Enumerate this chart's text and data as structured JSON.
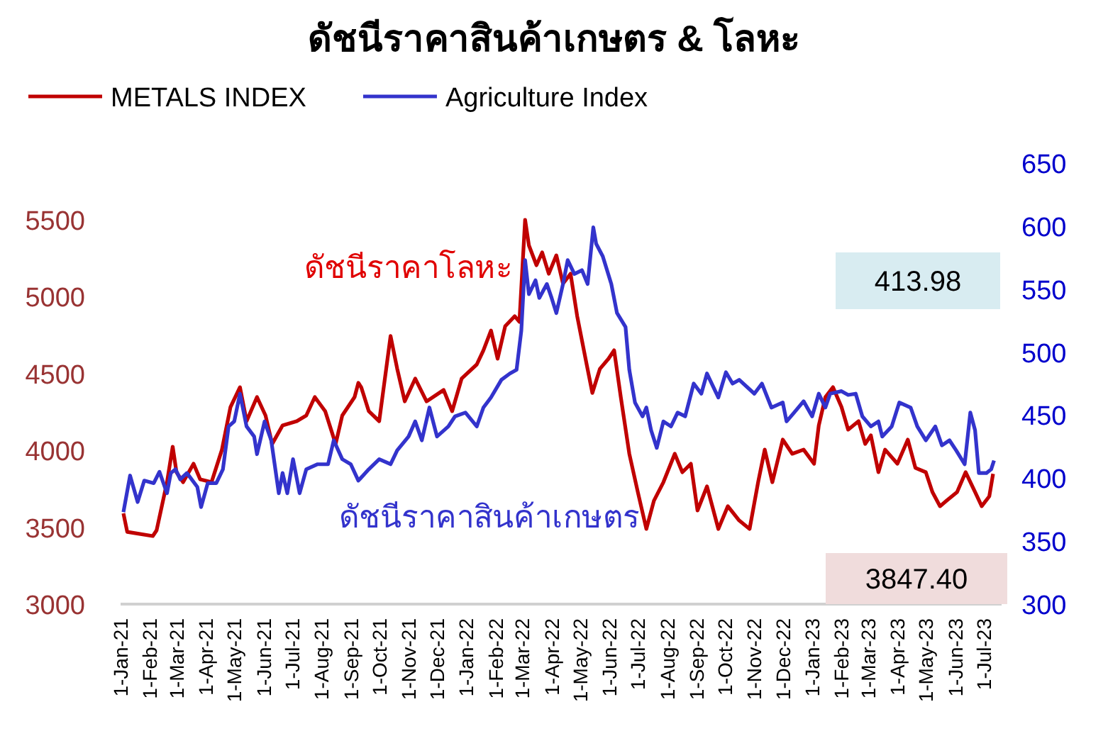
{
  "chart_data": {
    "type": "line",
    "title": "ดัชนีราคาสินค้าเกษตร & โลหะ",
    "legend": "top",
    "grid": false,
    "xlim": [
      "2021-01-01",
      "2023-07-20"
    ],
    "xticks": [
      {
        "value": "2021-01-01",
        "label": "1-Jan-21"
      },
      {
        "value": "2021-02-01",
        "label": "1-Feb-21"
      },
      {
        "value": "2021-03-01",
        "label": "1-Mar-21"
      },
      {
        "value": "2021-04-01",
        "label": "1-Apr-21"
      },
      {
        "value": "2021-05-01",
        "label": "1-May-21"
      },
      {
        "value": "2021-06-01",
        "label": "1-Jun-21"
      },
      {
        "value": "2021-07-01",
        "label": "1-Jul-21"
      },
      {
        "value": "2021-08-01",
        "label": "1-Aug-21"
      },
      {
        "value": "2021-09-01",
        "label": "1-Sep-21"
      },
      {
        "value": "2021-10-01",
        "label": "1-Oct-21"
      },
      {
        "value": "2021-11-01",
        "label": "1-Nov-21"
      },
      {
        "value": "2021-12-01",
        "label": "1-Dec-21"
      },
      {
        "value": "2022-01-01",
        "label": "1-Jan-22"
      },
      {
        "value": "2022-02-01",
        "label": "1-Feb-22"
      },
      {
        "value": "2022-03-01",
        "label": "1-Mar-22"
      },
      {
        "value": "2022-04-01",
        "label": "1-Apr-22"
      },
      {
        "value": "2022-05-01",
        "label": "1-May-22"
      },
      {
        "value": "2022-06-01",
        "label": "1-Jun-22"
      },
      {
        "value": "2022-07-01",
        "label": "1-Jul-22"
      },
      {
        "value": "2022-08-01",
        "label": "1-Aug-22"
      },
      {
        "value": "2022-09-01",
        "label": "1-Sep-22"
      },
      {
        "value": "2022-10-01",
        "label": "1-Oct-22"
      },
      {
        "value": "2022-11-01",
        "label": "1-Nov-22"
      },
      {
        "value": "2022-12-01",
        "label": "1-Dec-22"
      },
      {
        "value": "2023-01-01",
        "label": "1-Jan-23"
      },
      {
        "value": "2023-02-01",
        "label": "1-Feb-23"
      },
      {
        "value": "2023-03-01",
        "label": "1-Mar-23"
      },
      {
        "value": "2023-04-01",
        "label": "1-Apr-23"
      },
      {
        "value": "2023-05-01",
        "label": "1-May-23"
      },
      {
        "value": "2023-06-01",
        "label": "1-Jun-23"
      },
      {
        "value": "2023-07-01",
        "label": "1-Jul-23"
      }
    ],
    "ylim": [
      3000,
      5500
    ],
    "yticks": [
      3000,
      3500,
      4000,
      4500,
      5000,
      5500
    ],
    "y2lim": [
      300,
      650
    ],
    "y2ticks": [
      300,
      350,
      400,
      450,
      500,
      550,
      600,
      650
    ],
    "annotations": [
      "ดัชนีราคาโลหะ",
      "ดัชนีราคาสินค้าเกษตร",
      "413.98",
      "3847.40"
    ],
    "series": [
      {
        "name": "METALS INDEX",
        "color": "#c00000",
        "x": [
          "2021-01-04",
          "2021-01-08",
          "2021-02-04",
          "2021-02-08",
          "2021-02-19",
          "2021-02-25",
          "2021-03-01",
          "2021-03-08",
          "2021-03-19",
          "2021-03-26",
          "2021-04-07",
          "2021-04-18",
          "2021-04-27",
          "2021-05-07",
          "2021-05-14",
          "2021-05-25",
          "2021-06-03",
          "2021-06-10",
          "2021-06-21",
          "2021-07-06",
          "2021-07-16",
          "2021-07-25",
          "2021-08-05",
          "2021-08-16",
          "2021-08-23",
          "2021-09-05",
          "2021-09-09",
          "2021-09-12",
          "2021-09-20",
          "2021-10-01",
          "2021-10-13",
          "2021-10-20",
          "2021-10-28",
          "2021-11-08",
          "2021-11-20",
          "2021-12-08",
          "2021-12-17",
          "2021-12-27",
          "2022-01-12",
          "2022-01-19",
          "2022-01-27",
          "2022-02-03",
          "2022-02-11",
          "2022-02-21",
          "2022-02-26",
          "2022-03-04",
          "2022-03-08",
          "2022-03-16",
          "2022-03-22",
          "2022-03-29",
          "2022-04-06",
          "2022-04-13",
          "2022-04-21",
          "2022-04-28",
          "2022-05-08",
          "2022-05-14",
          "2022-05-22",
          "2022-05-31",
          "2022-06-06",
          "2022-06-13",
          "2022-06-22",
          "2022-07-01",
          "2022-07-10",
          "2022-07-18",
          "2022-07-28",
          "2022-08-09",
          "2022-08-17",
          "2022-08-26",
          "2022-09-02",
          "2022-09-12",
          "2022-09-24",
          "2022-10-04",
          "2022-10-16",
          "2022-10-27",
          "2022-11-05",
          "2022-11-12",
          "2022-11-20",
          "2022-12-01",
          "2022-12-11",
          "2022-12-23",
          "2023-01-03",
          "2023-01-08",
          "2023-01-15",
          "2023-01-23",
          "2023-02-01",
          "2023-02-08",
          "2023-02-19",
          "2023-02-26",
          "2023-03-04",
          "2023-03-12",
          "2023-03-19",
          "2023-04-01",
          "2023-04-12",
          "2023-04-20",
          "2023-05-01",
          "2023-05-08",
          "2023-05-16",
          "2023-05-23",
          "2023-06-03",
          "2023-06-12",
          "2023-06-22",
          "2023-06-29",
          "2023-07-07",
          "2023-07-11"
        ],
        "values": [
          3590,
          3470,
          3443,
          3480,
          3793,
          4024,
          3858,
          3793,
          3913,
          3812,
          3793,
          4005,
          4282,
          4411,
          4190,
          4347,
          4227,
          4042,
          4162,
          4190,
          4227,
          4347,
          4255,
          4042,
          4227,
          4347,
          4439,
          4411,
          4255,
          4190,
          4744,
          4531,
          4319,
          4467,
          4319,
          4393,
          4255,
          4467,
          4559,
          4651,
          4780,
          4596,
          4808,
          4873,
          4836,
          5500,
          5334,
          5205,
          5288,
          5149,
          5269,
          5085,
          5149,
          4873,
          4559,
          4374,
          4531,
          4596,
          4651,
          4347,
          3978,
          3729,
          3489,
          3673,
          3793,
          3978,
          3858,
          3913,
          3609,
          3766,
          3489,
          3637,
          3544,
          3489,
          3793,
          4005,
          3793,
          4070,
          3978,
          4005,
          3913,
          4162,
          4347,
          4411,
          4282,
          4135,
          4190,
          4042,
          4098,
          3858,
          4005,
          3913,
          4070,
          3886,
          3858,
          3729,
          3637,
          3673,
          3729,
          3858,
          3729,
          3637,
          3701,
          3847.4
        ]
      },
      {
        "name": "Agriculture Index",
        "color": "#3333cc",
        "axis": "y2",
        "x": [
          "2021-01-04",
          "2021-01-11",
          "2021-01-19",
          "2021-01-26",
          "2021-02-05",
          "2021-02-11",
          "2021-02-19",
          "2021-02-23",
          "2021-02-28",
          "2021-03-05",
          "2021-03-12",
          "2021-03-23",
          "2021-03-27",
          "2021-04-03",
          "2021-04-12",
          "2021-04-19",
          "2021-04-25",
          "2021-05-01",
          "2021-05-07",
          "2021-05-14",
          "2021-05-22",
          "2021-05-25",
          "2021-06-02",
          "2021-06-09",
          "2021-06-17",
          "2021-06-21",
          "2021-06-26",
          "2021-07-02",
          "2021-07-09",
          "2021-07-16",
          "2021-07-28",
          "2021-08-08",
          "2021-08-14",
          "2021-08-23",
          "2021-09-01",
          "2021-09-09",
          "2021-09-20",
          "2021-10-01",
          "2021-10-13",
          "2021-10-20",
          "2021-11-01",
          "2021-11-08",
          "2021-11-15",
          "2021-11-23",
          "2021-12-01",
          "2021-12-13",
          "2021-12-20",
          "2021-12-31",
          "2022-01-12",
          "2022-01-19",
          "2022-01-27",
          "2022-02-07",
          "2022-02-16",
          "2022-02-23",
          "2022-02-28",
          "2022-03-04",
          "2022-03-08",
          "2022-03-15",
          "2022-03-19",
          "2022-03-27",
          "2022-04-01",
          "2022-04-06",
          "2022-04-13",
          "2022-04-18",
          "2022-04-25",
          "2022-05-03",
          "2022-05-09",
          "2022-05-15",
          "2022-05-18",
          "2022-05-25",
          "2022-06-03",
          "2022-06-09",
          "2022-06-18",
          "2022-06-22",
          "2022-06-28",
          "2022-07-06",
          "2022-07-10",
          "2022-07-15",
          "2022-07-21",
          "2022-07-28",
          "2022-08-05",
          "2022-08-12",
          "2022-08-20",
          "2022-08-29",
          "2022-09-06",
          "2022-09-12",
          "2022-09-24",
          "2022-10-02",
          "2022-10-09",
          "2022-10-16",
          "2022-11-01",
          "2022-11-09",
          "2022-11-19",
          "2022-12-01",
          "2022-12-05",
          "2022-12-13",
          "2022-12-23",
          "2023-01-01",
          "2023-01-08",
          "2023-01-15",
          "2023-01-20",
          "2023-02-01",
          "2023-02-08",
          "2023-02-16",
          "2023-02-23",
          "2023-03-04",
          "2023-03-12",
          "2023-03-16",
          "2023-03-26",
          "2023-04-03",
          "2023-04-15",
          "2023-04-22",
          "2023-05-01",
          "2023-05-11",
          "2023-05-18",
          "2023-05-26",
          "2023-06-02",
          "2023-06-11",
          "2023-06-17",
          "2023-06-22",
          "2023-06-26",
          "2023-07-04",
          "2023-07-09",
          "2023-07-12"
        ],
        "values": [
          373,
          402,
          381,
          398,
          396,
          405,
          388,
          404,
          407,
          399,
          404,
          393,
          377,
          396,
          396,
          407,
          441,
          445,
          467,
          441,
          433,
          419,
          445,
          430,
          388,
          404,
          388,
          415,
          388,
          407,
          411,
          411,
          430,
          415,
          411,
          398,
          407,
          415,
          411,
          422,
          433,
          445,
          430,
          456,
          433,
          441,
          449,
          452,
          441,
          456,
          464,
          478,
          483,
          486,
          517,
          573,
          546,
          557,
          543,
          554,
          543,
          531,
          554,
          573,
          562,
          565,
          554,
          599,
          586,
          576,
          554,
          531,
          520,
          486,
          460,
          449,
          456,
          438,
          424,
          445,
          441,
          452,
          449,
          475,
          467,
          483,
          464,
          484,
          475,
          478,
          467,
          475,
          456,
          460,
          445,
          452,
          461,
          449,
          467,
          456,
          467,
          469,
          466,
          467,
          449,
          441,
          445,
          433,
          441,
          460,
          456,
          441,
          430,
          441,
          426,
          430,
          422,
          411,
          452,
          438,
          404,
          404,
          407,
          413.98
        ]
      }
    ]
  }
}
